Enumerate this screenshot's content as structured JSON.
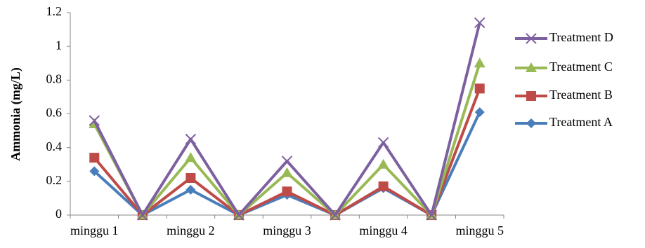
{
  "chart_data": {
    "type": "line",
    "y_label": "Ammonia (mg/L)",
    "categories": [
      "minggu 1",
      null,
      "minggu 2",
      null,
      "minggu 3",
      null,
      "minggu 4",
      null,
      "minggu 5"
    ],
    "series": [
      {
        "name": "Treatment A",
        "color": "#4a7ebb",
        "marker": "diamond",
        "values": [
          0.26,
          0,
          0.15,
          0,
          0.12,
          0,
          0.16,
          0,
          0.61
        ]
      },
      {
        "name": "Treatment B",
        "color": "#be4b48",
        "marker": "square",
        "values": [
          0.34,
          0,
          0.22,
          0,
          0.14,
          0,
          0.17,
          0,
          0.75
        ]
      },
      {
        "name": "Treatment C",
        "color": "#98b954",
        "marker": "triangle",
        "values": [
          0.54,
          0,
          0.34,
          0,
          0.25,
          0,
          0.3,
          0,
          0.9
        ]
      },
      {
        "name": "Treatment D",
        "color": "#7d60a0",
        "marker": "x",
        "values": [
          0.56,
          0,
          0.45,
          0,
          0.32,
          0,
          0.43,
          0,
          1.14
        ]
      }
    ],
    "ylim": [
      0,
      1.2
    ],
    "yticks": [
      0,
      0.2,
      0.4,
      0.6,
      0.8,
      1,
      1.2
    ],
    "legend": "right"
  }
}
